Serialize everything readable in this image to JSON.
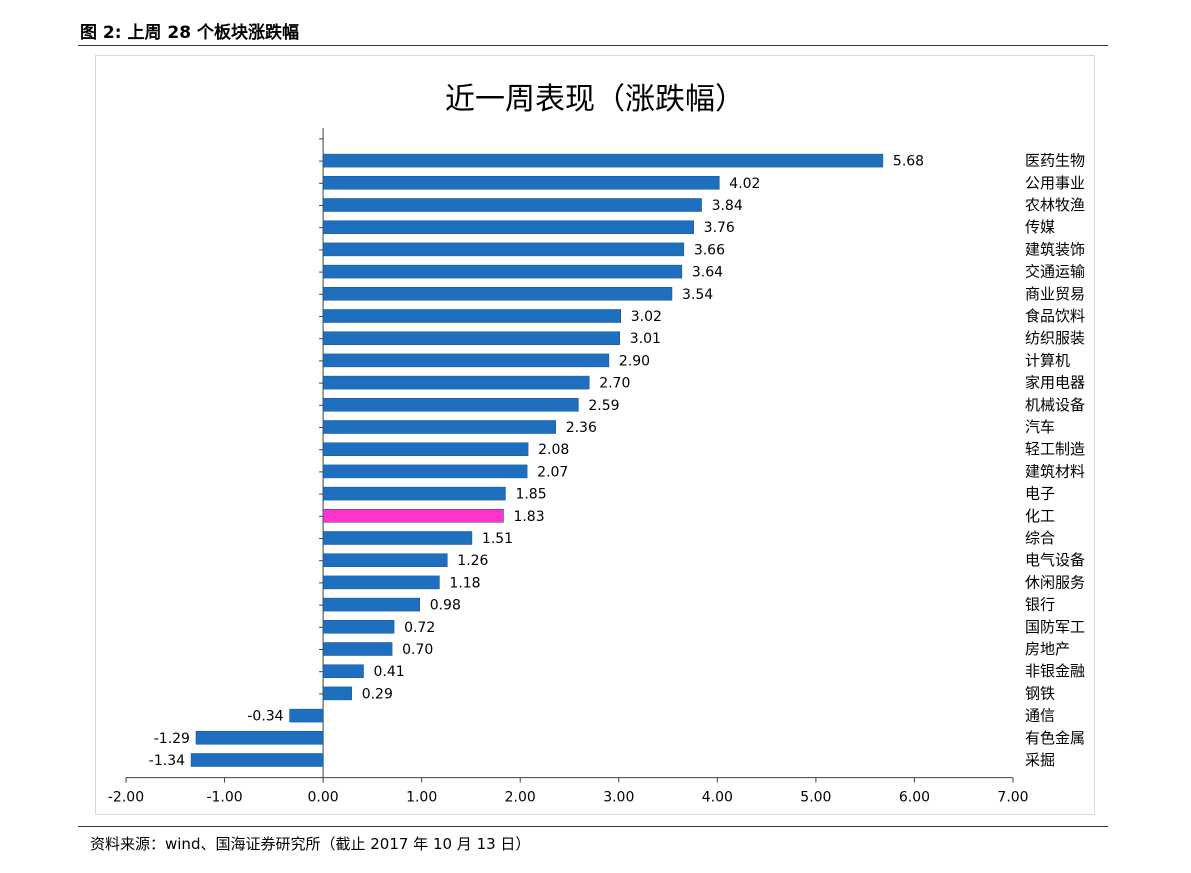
{
  "figure_title": "图 2:  上周 28 个板块涨跌幅",
  "source_note": "资料来源：wind、国海证券研究所（截止 2017 年 10 月 13 日）",
  "colors": {
    "bar": "#1f6fbf",
    "highlight": "#ff33cc",
    "axis": "#404040"
  },
  "chart_data": {
    "type": "bar",
    "orientation": "horizontal",
    "title": "近一周表现（涨跌幅）",
    "xlabel": "",
    "ylabel": "",
    "xlim": [
      -2.0,
      7.0
    ],
    "xticks": [
      "-2.00",
      "-1.00",
      "0.00",
      "1.00",
      "2.00",
      "3.00",
      "4.00",
      "5.00",
      "6.00",
      "7.00"
    ],
    "grid": false,
    "legend": "none",
    "highlight_category": "化工",
    "categories": [
      "医药生物",
      "公用事业",
      "农林牧渔",
      "传媒",
      "建筑装饰",
      "交通运输",
      "商业贸易",
      "食品饮料",
      "纺织服装",
      "计算机",
      "家用电器",
      "机械设备",
      "汽车",
      "轻工制造",
      "建筑材料",
      "电子",
      "化工",
      "综合",
      "电气设备",
      "休闲服务",
      "银行",
      "国防军工",
      "房地产",
      "非银金融",
      "钢铁",
      "通信",
      "有色金属",
      "采掘"
    ],
    "values": [
      5.68,
      4.02,
      3.84,
      3.76,
      3.66,
      3.64,
      3.54,
      3.02,
      3.01,
      2.9,
      2.7,
      2.59,
      2.36,
      2.08,
      2.07,
      1.85,
      1.83,
      1.51,
      1.26,
      1.18,
      0.98,
      0.72,
      0.7,
      0.41,
      0.29,
      -0.34,
      -1.29,
      -1.34
    ],
    "value_labels": [
      "5.68",
      "4.02",
      "3.84",
      "3.76",
      "3.66",
      "3.64",
      "3.54",
      "3.02",
      "3.01",
      "2.90",
      "2.70",
      "2.59",
      "2.36",
      "2.08",
      "2.07",
      "1.85",
      "1.83",
      "1.51",
      "1.26",
      "1.18",
      "0.98",
      "0.72",
      "0.70",
      "0.41",
      "0.29",
      "-0.34",
      "-1.29",
      "-1.34"
    ]
  }
}
